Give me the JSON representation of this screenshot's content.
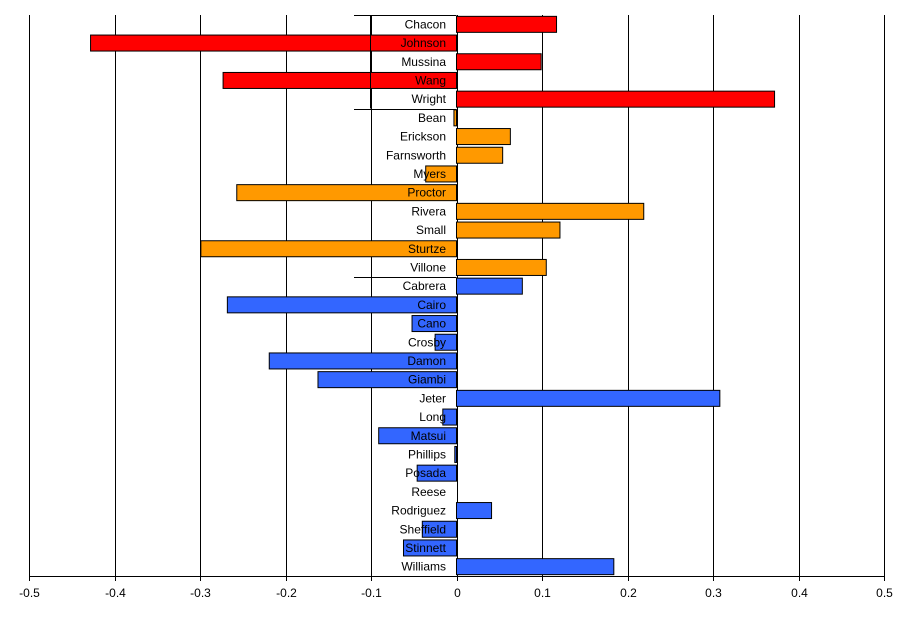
{
  "chart_data": {
    "type": "bar",
    "orientation": "horizontal",
    "xlim": [
      -0.5,
      0.5
    ],
    "xticks": [
      -0.5,
      -0.4,
      -0.3,
      -0.2,
      -0.1,
      0,
      0.1,
      0.2,
      0.3,
      0.4,
      0.5
    ],
    "xtick_labels": [
      "-0.5",
      "-0.4",
      "-0.3",
      "-0.2",
      "-0.1",
      "0",
      "0.1",
      "0.2",
      "0.3",
      "0.4",
      "0.5"
    ],
    "grid": true,
    "colors": {
      "red": "#ff0000",
      "orange": "#ff9900",
      "blue": "#3366ff"
    },
    "categories": [
      "Chacon",
      "Johnson",
      "Mussina",
      "Wang",
      "Wright",
      "Bean",
      "Erickson",
      "Farnsworth",
      "Myers",
      "Proctor",
      "Rivera",
      "Small",
      "Sturtze",
      "Villone",
      "Cabrera",
      "Cairo",
      "Cano",
      "Crosby",
      "Damon",
      "Giambi",
      "Jeter",
      "Long",
      "Matsui",
      "Phillips",
      "Posada",
      "Reese",
      "Rodriguez",
      "Sheffield",
      "Stinnett",
      "Williams"
    ],
    "values": [
      0.117,
      -0.428,
      0.099,
      -0.273,
      0.372,
      -0.003,
      0.063,
      0.054,
      -0.036,
      -0.257,
      0.219,
      0.121,
      -0.299,
      0.105,
      0.077,
      -0.268,
      -0.052,
      -0.025,
      -0.219,
      -0.162,
      0.308,
      -0.016,
      -0.091,
      -0.002,
      -0.046,
      0.0,
      0.041,
      -0.04,
      -0.062,
      0.184
    ],
    "groups": [
      "red",
      "red",
      "red",
      "red",
      "red",
      "orange",
      "orange",
      "orange",
      "orange",
      "orange",
      "orange",
      "orange",
      "orange",
      "orange",
      "blue",
      "blue",
      "blue",
      "blue",
      "blue",
      "blue",
      "blue",
      "blue",
      "blue",
      "blue",
      "blue",
      "blue",
      "blue",
      "blue",
      "blue",
      "blue"
    ]
  }
}
